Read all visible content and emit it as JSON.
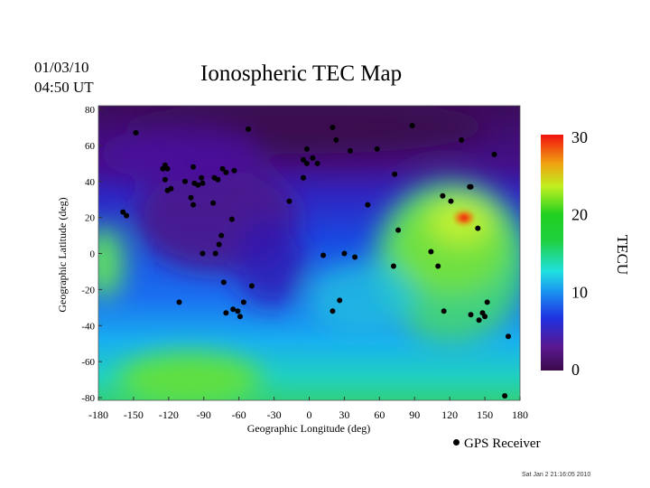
{
  "header": {
    "date": "01/03/10",
    "time": "04:50 UT",
    "title": "Ionospheric TEC Map"
  },
  "footer": {
    "timestamp": "Sat Jan  2 21:16:05 2010",
    "legend_label": "GPS Receiver"
  },
  "chart_data": {
    "type": "heatmap",
    "title": "Ionospheric TEC Map",
    "xlabel": "Geographic Longitude (deg)",
    "ylabel": "Geographic Latitude (deg)",
    "xlim": [
      -180,
      180
    ],
    "ylim": [
      -80,
      80
    ],
    "xticks": [
      -180,
      -150,
      -120,
      -90,
      -60,
      -30,
      0,
      30,
      60,
      90,
      120,
      150,
      180
    ],
    "yticks": [
      -80,
      -60,
      -40,
      -20,
      0,
      20,
      40,
      60,
      80
    ],
    "colorbar": {
      "label": "TECU",
      "range": [
        0,
        30
      ],
      "ticks": [
        0,
        10,
        20,
        30
      ],
      "colors": [
        "#3a0a4a",
        "#5a1890",
        "#1a3ae0",
        "#1aa0f0",
        "#20e0e0",
        "#20d040",
        "#a0f020",
        "#f0f020",
        "#f08010",
        "#f01010"
      ]
    },
    "tec_features": [
      {
        "description_lon": 130,
        "lat": 10,
        "tec": 20
      },
      {
        "description_lon": 140,
        "lat": 20,
        "tec": 28
      },
      {
        "description_lon": -90,
        "lat": -70,
        "tec": 18
      },
      {
        "description_lon": -180,
        "lat": -5,
        "tec": 17
      },
      {
        "description_lon": -90,
        "lat": 20,
        "tec": 3
      },
      {
        "description_lon": 0,
        "lat": 70,
        "tec": 2
      }
    ],
    "receivers": {
      "name": "GPS Receiver",
      "lon": [
        -148,
        -123,
        -121,
        -125,
        -123,
        -118,
        -121,
        -99,
        -106,
        -98,
        -92,
        -91,
        -95,
        -101,
        -99,
        -81,
        -78,
        -82,
        -74,
        -71,
        -64,
        -66,
        -75,
        -77,
        -91,
        -80,
        -73,
        -71,
        -65,
        -61,
        -59,
        -56,
        -49,
        -111,
        -159,
        -156,
        -52,
        20,
        23,
        -2,
        -5,
        -2,
        3,
        7,
        -5,
        -17,
        12,
        30,
        39,
        26,
        20,
        35,
        58,
        88,
        130,
        158,
        73,
        114,
        137,
        138,
        50,
        76,
        121,
        144,
        104,
        110,
        72,
        115,
        138,
        145,
        150,
        152,
        148,
        170,
        167
      ],
      "lat": [
        67,
        49,
        47,
        47,
        41,
        36,
        35,
        48,
        40,
        39,
        42,
        39,
        38,
        31,
        27,
        42,
        41,
        28,
        47,
        45,
        46,
        19,
        10,
        5,
        0,
        0,
        -16,
        -33,
        -31,
        -32,
        -35,
        -27,
        -18,
        -27,
        23,
        21,
        69,
        70,
        63,
        58,
        52,
        50,
        53,
        50,
        42,
        29,
        -1,
        0,
        -2,
        -26,
        -32,
        57,
        58,
        71,
        63,
        55,
        44,
        32,
        37,
        37,
        27,
        13,
        29,
        14,
        1,
        -7,
        -7,
        -32,
        -34,
        -37,
        -35,
        -27,
        -33,
        -46,
        -79
      ]
    }
  }
}
